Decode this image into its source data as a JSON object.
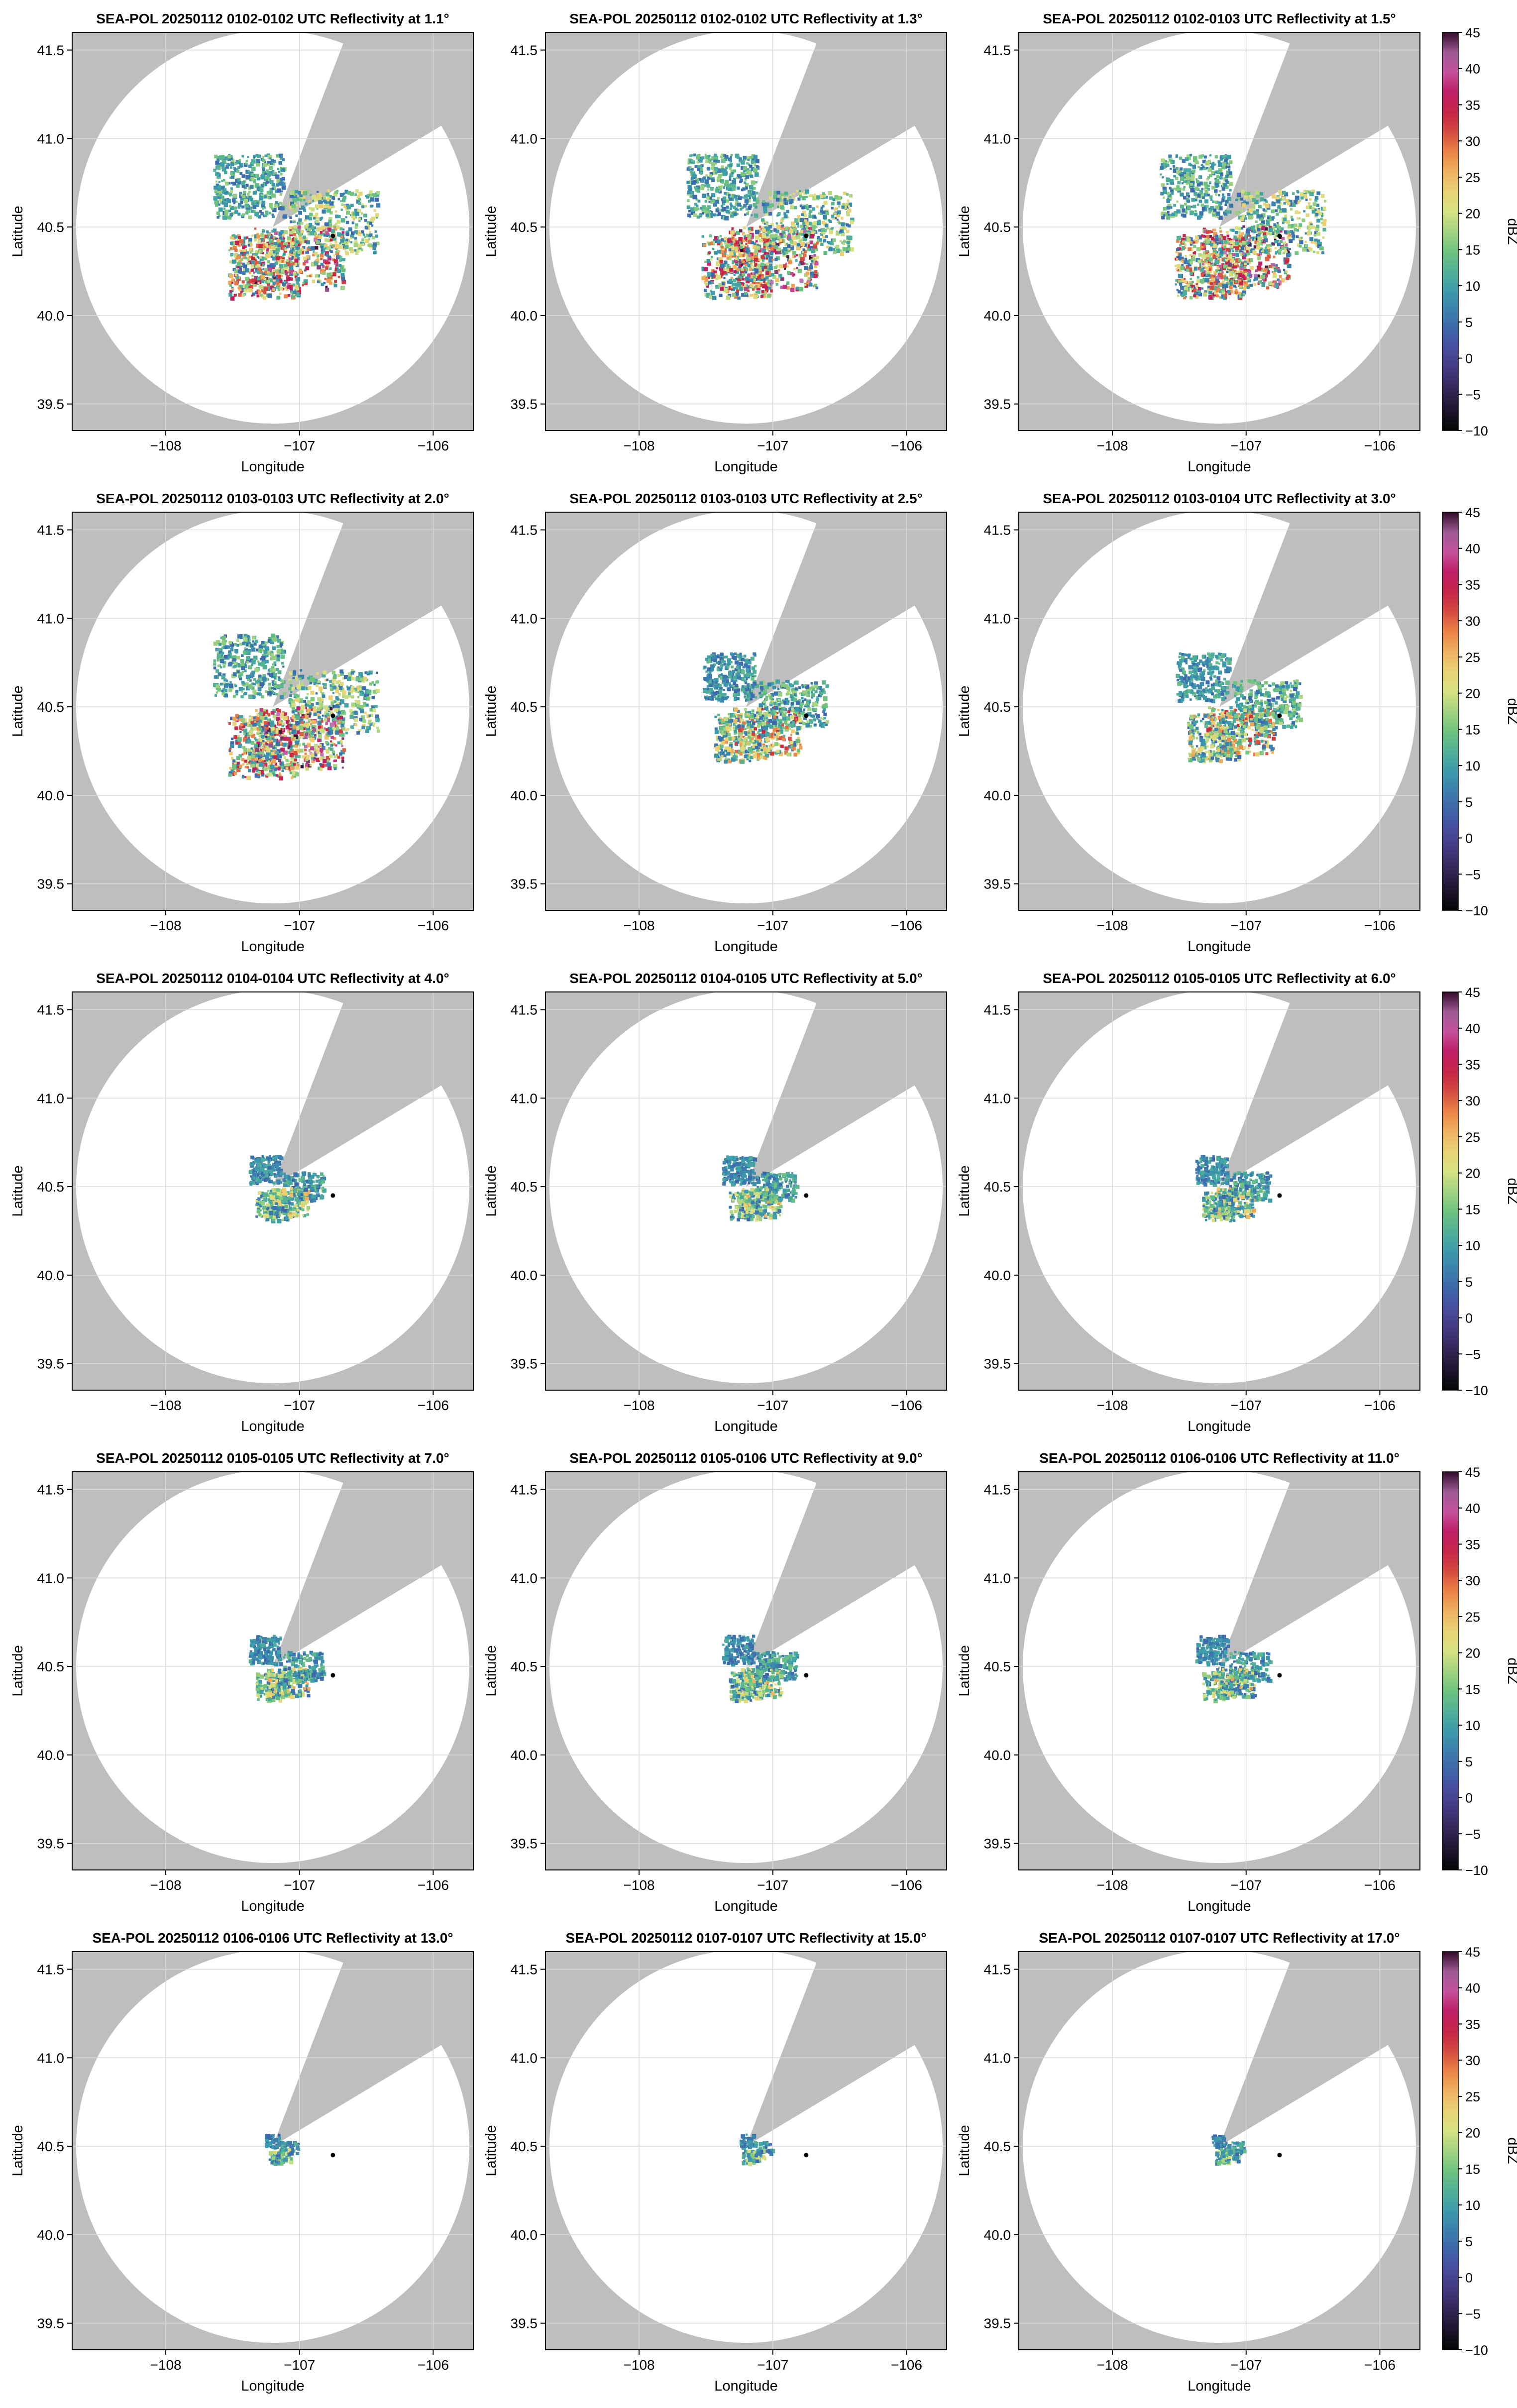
{
  "figure": {
    "colors": {
      "background": "#bebebe",
      "coverage": "#ffffff",
      "grid": "#d9d9d9",
      "site_marker": "#000000"
    },
    "colormap": {
      "name": "cmocean balance-like rainbow"
    }
  },
  "chart_data": [
    {
      "type": "heatmap",
      "title": "SEA-POL 20250112 0102-0102 UTC Reflectivity at 1.1°",
      "xlabel": "Longitude",
      "ylabel": "Latitude",
      "xticks": [
        "−108",
        "−107",
        "−106"
      ],
      "yticks": [
        "39.5",
        "40.0",
        "40.5",
        "41.0",
        "41.5"
      ],
      "xlim": [
        -108.7,
        -105.7
      ],
      "ylim": [
        39.35,
        41.6
      ],
      "grid": true,
      "elevation_deg": 1.1,
      "echo_intensity": "high",
      "radar_site": [
        -107.2,
        40.5
      ],
      "point_marker": [
        -106.75,
        40.45
      ]
    },
    {
      "type": "heatmap",
      "title": "SEA-POL 20250112 0102-0102 UTC Reflectivity at 1.3°",
      "xlabel": "Longitude",
      "ylabel": "Latitude",
      "xticks": [
        "−108",
        "−107",
        "−106"
      ],
      "yticks": [
        "39.5",
        "40.0",
        "40.5",
        "41.0",
        "41.5"
      ],
      "xlim": [
        -108.7,
        -105.7
      ],
      "ylim": [
        39.35,
        41.6
      ],
      "grid": true,
      "elevation_deg": 1.3,
      "echo_intensity": "high",
      "radar_site": [
        -107.2,
        40.5
      ],
      "point_marker": [
        -106.75,
        40.45
      ]
    },
    {
      "type": "heatmap",
      "title": "SEA-POL 20250112 0102-0103 UTC Reflectivity at 1.5°",
      "xlabel": "Longitude",
      "ylabel": "Latitude",
      "xticks": [
        "−108",
        "−107",
        "−106"
      ],
      "yticks": [
        "39.5",
        "40.0",
        "40.5",
        "41.0",
        "41.5"
      ],
      "xlim": [
        -108.7,
        -105.7
      ],
      "ylim": [
        39.35,
        41.6
      ],
      "grid": true,
      "elevation_deg": 1.5,
      "echo_intensity": "high",
      "radar_site": [
        -107.2,
        40.5
      ],
      "point_marker": [
        -106.75,
        40.45
      ],
      "colorbar": {
        "label": "dBZ",
        "ticks": [
          "45",
          "40",
          "35",
          "30",
          "25",
          "20",
          "15",
          "10",
          "5",
          "0",
          "−5",
          "−10"
        ],
        "range": [
          -10,
          45
        ]
      }
    },
    {
      "type": "heatmap",
      "title": "SEA-POL 20250112 0103-0103 UTC Reflectivity at 2.0°",
      "xlabel": "Longitude",
      "ylabel": "Latitude",
      "xticks": [
        "−108",
        "−107",
        "−106"
      ],
      "yticks": [
        "39.5",
        "40.0",
        "40.5",
        "41.0",
        "41.5"
      ],
      "xlim": [
        -108.7,
        -105.7
      ],
      "ylim": [
        39.35,
        41.6
      ],
      "grid": true,
      "elevation_deg": 2.0,
      "echo_intensity": "high",
      "radar_site": [
        -107.2,
        40.5
      ],
      "point_marker": [
        -106.75,
        40.45
      ]
    },
    {
      "type": "heatmap",
      "title": "SEA-POL 20250112 0103-0103 UTC Reflectivity at 2.5°",
      "xlabel": "Longitude",
      "ylabel": "Latitude",
      "xticks": [
        "−108",
        "−107",
        "−106"
      ],
      "yticks": [
        "39.5",
        "40.0",
        "40.5",
        "41.0",
        "41.5"
      ],
      "xlim": [
        -108.7,
        -105.7
      ],
      "ylim": [
        39.35,
        41.6
      ],
      "grid": true,
      "elevation_deg": 2.5,
      "echo_intensity": "medium",
      "radar_site": [
        -107.2,
        40.5
      ],
      "point_marker": [
        -106.75,
        40.45
      ]
    },
    {
      "type": "heatmap",
      "title": "SEA-POL 20250112 0103-0104 UTC Reflectivity at 3.0°",
      "xlabel": "Longitude",
      "ylabel": "Latitude",
      "xticks": [
        "−108",
        "−107",
        "−106"
      ],
      "yticks": [
        "39.5",
        "40.0",
        "40.5",
        "41.0",
        "41.5"
      ],
      "xlim": [
        -108.7,
        -105.7
      ],
      "ylim": [
        39.35,
        41.6
      ],
      "grid": true,
      "elevation_deg": 3.0,
      "echo_intensity": "medium",
      "radar_site": [
        -107.2,
        40.5
      ],
      "point_marker": [
        -106.75,
        40.45
      ],
      "colorbar": {
        "label": "dBZ",
        "ticks": [
          "45",
          "40",
          "35",
          "30",
          "25",
          "20",
          "15",
          "10",
          "5",
          "0",
          "−5",
          "−10"
        ],
        "range": [
          -10,
          45
        ]
      }
    },
    {
      "type": "heatmap",
      "title": "SEA-POL 20250112 0104-0104 UTC Reflectivity at 4.0°",
      "xlabel": "Longitude",
      "ylabel": "Latitude",
      "xticks": [
        "−108",
        "−107",
        "−106"
      ],
      "yticks": [
        "39.5",
        "40.0",
        "40.5",
        "41.0",
        "41.5"
      ],
      "xlim": [
        -108.7,
        -105.7
      ],
      "ylim": [
        39.35,
        41.6
      ],
      "grid": true,
      "elevation_deg": 4.0,
      "echo_intensity": "low",
      "radar_site": [
        -107.2,
        40.5
      ],
      "point_marker": [
        -106.75,
        40.45
      ]
    },
    {
      "type": "heatmap",
      "title": "SEA-POL 20250112 0104-0105 UTC Reflectivity at 5.0°",
      "xlabel": "Longitude",
      "ylabel": "Latitude",
      "xticks": [
        "−108",
        "−107",
        "−106"
      ],
      "yticks": [
        "39.5",
        "40.0",
        "40.5",
        "41.0",
        "41.5"
      ],
      "xlim": [
        -108.7,
        -105.7
      ],
      "ylim": [
        39.35,
        41.6
      ],
      "grid": true,
      "elevation_deg": 5.0,
      "echo_intensity": "low",
      "radar_site": [
        -107.2,
        40.5
      ],
      "point_marker": [
        -106.75,
        40.45
      ]
    },
    {
      "type": "heatmap",
      "title": "SEA-POL 20250112 0105-0105 UTC Reflectivity at 6.0°",
      "xlabel": "Longitude",
      "ylabel": "Latitude",
      "xticks": [
        "−108",
        "−107",
        "−106"
      ],
      "yticks": [
        "39.5",
        "40.0",
        "40.5",
        "41.0",
        "41.5"
      ],
      "xlim": [
        -108.7,
        -105.7
      ],
      "ylim": [
        39.35,
        41.6
      ],
      "grid": true,
      "elevation_deg": 6.0,
      "echo_intensity": "low",
      "radar_site": [
        -107.2,
        40.5
      ],
      "point_marker": [
        -106.75,
        40.45
      ],
      "colorbar": {
        "label": "dBZ",
        "ticks": [
          "45",
          "40",
          "35",
          "30",
          "25",
          "20",
          "15",
          "10",
          "5",
          "0",
          "−5",
          "−10"
        ],
        "range": [
          -10,
          45
        ]
      }
    },
    {
      "type": "heatmap",
      "title": "SEA-POL 20250112 0105-0105 UTC Reflectivity at 7.0°",
      "xlabel": "Longitude",
      "ylabel": "Latitude",
      "xticks": [
        "−108",
        "−107",
        "−106"
      ],
      "yticks": [
        "39.5",
        "40.0",
        "40.5",
        "41.0",
        "41.5"
      ],
      "xlim": [
        -108.7,
        -105.7
      ],
      "ylim": [
        39.35,
        41.6
      ],
      "grid": true,
      "elevation_deg": 7.0,
      "echo_intensity": "low",
      "radar_site": [
        -107.2,
        40.5
      ],
      "point_marker": [
        -106.75,
        40.45
      ]
    },
    {
      "type": "heatmap",
      "title": "SEA-POL 20250112 0105-0106 UTC Reflectivity at 9.0°",
      "xlabel": "Longitude",
      "ylabel": "Latitude",
      "xticks": [
        "−108",
        "−107",
        "−106"
      ],
      "yticks": [
        "39.5",
        "40.0",
        "40.5",
        "41.0",
        "41.5"
      ],
      "xlim": [
        -108.7,
        -105.7
      ],
      "ylim": [
        39.35,
        41.6
      ],
      "grid": true,
      "elevation_deg": 9.0,
      "echo_intensity": "low",
      "radar_site": [
        -107.2,
        40.5
      ],
      "point_marker": [
        -106.75,
        40.45
      ]
    },
    {
      "type": "heatmap",
      "title": "SEA-POL 20250112 0106-0106 UTC Reflectivity at 11.0°",
      "xlabel": "Longitude",
      "ylabel": "Latitude",
      "xticks": [
        "−108",
        "−107",
        "−106"
      ],
      "yticks": [
        "39.5",
        "40.0",
        "40.5",
        "41.0",
        "41.5"
      ],
      "xlim": [
        -108.7,
        -105.7
      ],
      "ylim": [
        39.35,
        41.6
      ],
      "grid": true,
      "elevation_deg": 11.0,
      "echo_intensity": "low",
      "radar_site": [
        -107.2,
        40.5
      ],
      "point_marker": [
        -106.75,
        40.45
      ],
      "colorbar": {
        "label": "dBZ",
        "ticks": [
          "45",
          "40",
          "35",
          "30",
          "25",
          "20",
          "15",
          "10",
          "5",
          "0",
          "−5",
          "−10"
        ],
        "range": [
          -10,
          45
        ]
      }
    },
    {
      "type": "heatmap",
      "title": "SEA-POL 20250112 0106-0106 UTC Reflectivity at 13.0°",
      "xlabel": "Longitude",
      "ylabel": "Latitude",
      "xticks": [
        "−108",
        "−107",
        "−106"
      ],
      "yticks": [
        "39.5",
        "40.0",
        "40.5",
        "41.0",
        "41.5"
      ],
      "xlim": [
        -108.7,
        -105.7
      ],
      "ylim": [
        39.35,
        41.6
      ],
      "grid": true,
      "elevation_deg": 13.0,
      "echo_intensity": "very-low",
      "radar_site": [
        -107.2,
        40.5
      ],
      "point_marker": [
        -106.75,
        40.45
      ]
    },
    {
      "type": "heatmap",
      "title": "SEA-POL 20250112 0107-0107 UTC Reflectivity at 15.0°",
      "xlabel": "Longitude",
      "ylabel": "Latitude",
      "xticks": [
        "−108",
        "−107",
        "−106"
      ],
      "yticks": [
        "39.5",
        "40.0",
        "40.5",
        "41.0",
        "41.5"
      ],
      "xlim": [
        -108.7,
        -105.7
      ],
      "ylim": [
        39.35,
        41.6
      ],
      "grid": true,
      "elevation_deg": 15.0,
      "echo_intensity": "very-low",
      "radar_site": [
        -107.2,
        40.5
      ],
      "point_marker": [
        -106.75,
        40.45
      ]
    },
    {
      "type": "heatmap",
      "title": "SEA-POL 20250112 0107-0107 UTC Reflectivity at 17.0°",
      "xlabel": "Longitude",
      "ylabel": "Latitude",
      "xticks": [
        "−108",
        "−107",
        "−106"
      ],
      "yticks": [
        "39.5",
        "40.0",
        "40.5",
        "41.0",
        "41.5"
      ],
      "xlim": [
        -108.7,
        -105.7
      ],
      "ylim": [
        39.35,
        41.6
      ],
      "grid": true,
      "elevation_deg": 17.0,
      "echo_intensity": "very-low",
      "radar_site": [
        -107.2,
        40.5
      ],
      "point_marker": [
        -106.75,
        40.45
      ],
      "colorbar": {
        "label": "dBZ",
        "ticks": [
          "45",
          "40",
          "35",
          "30",
          "25",
          "20",
          "15",
          "10",
          "5",
          "0",
          "−5",
          "−10"
        ],
        "range": [
          -10,
          45
        ]
      }
    }
  ]
}
